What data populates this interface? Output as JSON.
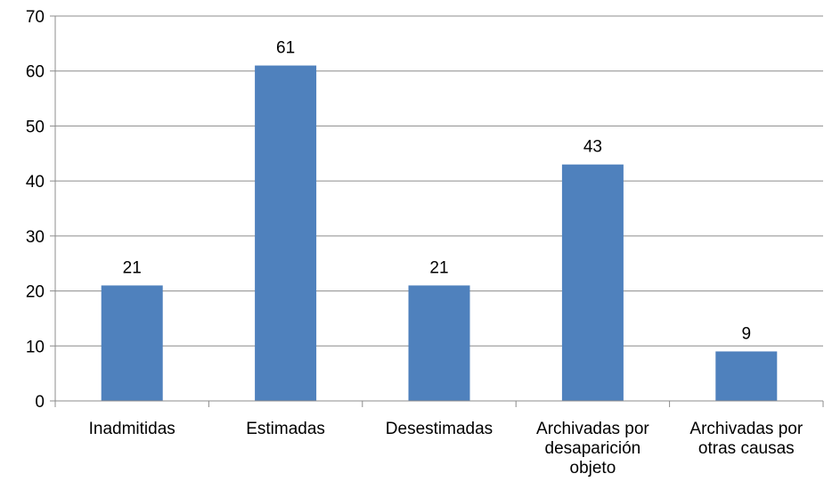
{
  "chart_data": {
    "type": "bar",
    "categories": [
      "Inadmitidas",
      "Estimadas",
      "Desestimadas",
      "Archivadas por desaparición objeto",
      "Archivadas por otras causas"
    ],
    "category_lines": [
      [
        "Inadmitidas"
      ],
      [
        "Estimadas"
      ],
      [
        "Desestimadas"
      ],
      [
        "Archivadas por",
        "desaparición",
        "objeto"
      ],
      [
        "Archivadas por",
        "otras causas"
      ]
    ],
    "values": [
      21,
      61,
      21,
      43,
      9
    ],
    "data_labels": [
      "21",
      "61",
      "21",
      "43",
      "9"
    ],
    "ylim": [
      0,
      70
    ],
    "yticks": [
      0,
      10,
      20,
      30,
      40,
      50,
      60,
      70
    ],
    "grid": true,
    "legend": "none",
    "bar_color": "#4f81bd",
    "grid_color": "#8c8c8c"
  }
}
